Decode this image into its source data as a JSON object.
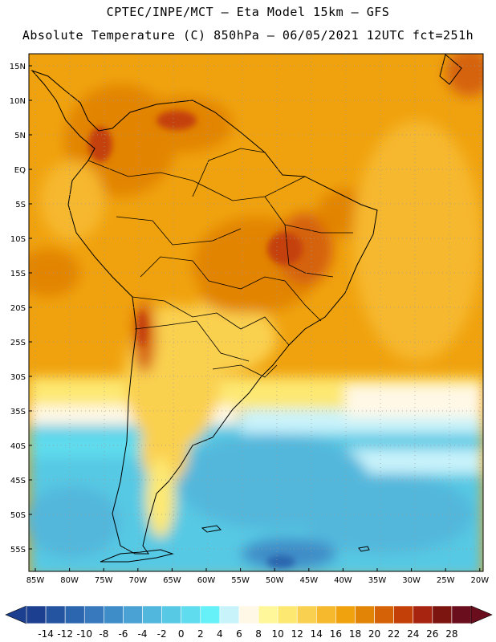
{
  "header": {
    "title_line1": "CPTEC/INPE/MCT –  Eta Model 15km – GFS",
    "title_line2": "Absolute Temperature (C) 850hPa – 06/05/2021 12UTC fct=251h"
  },
  "map": {
    "lat_labels": [
      "15N",
      "10N",
      "5N",
      "EQ",
      "5S",
      "10S",
      "15S",
      "20S",
      "25S",
      "30S",
      "35S",
      "40S",
      "45S",
      "50S",
      "55S"
    ],
    "lon_labels": [
      "85W",
      "80W",
      "75W",
      "70W",
      "65W",
      "60W",
      "55W",
      "50W",
      "45W",
      "40W",
      "35W",
      "30W",
      "25W",
      "20W"
    ]
  },
  "colorbar": {
    "labels": [
      "-14",
      "-12",
      "-10",
      "-8",
      "-6",
      "-4",
      "-2",
      "0",
      "2",
      "4",
      "6",
      "8",
      "10",
      "12",
      "14",
      "16",
      "18",
      "20",
      "22",
      "24",
      "26",
      "28"
    ],
    "colors": [
      "#1c3f8f",
      "#24539f",
      "#2c66ae",
      "#3779bc",
      "#3f8dc8",
      "#49a2d3",
      "#52b7dc",
      "#57c9e4",
      "#5fdced",
      "#66f0f7",
      "#c9f3fb",
      "#fff8e6",
      "#fff79a",
      "#fde872",
      "#fad050",
      "#f6b82d",
      "#f0a20e",
      "#e28406",
      "#d56207",
      "#c44009",
      "#a62410",
      "#7c1510",
      "#6a0d1c"
    ]
  }
}
